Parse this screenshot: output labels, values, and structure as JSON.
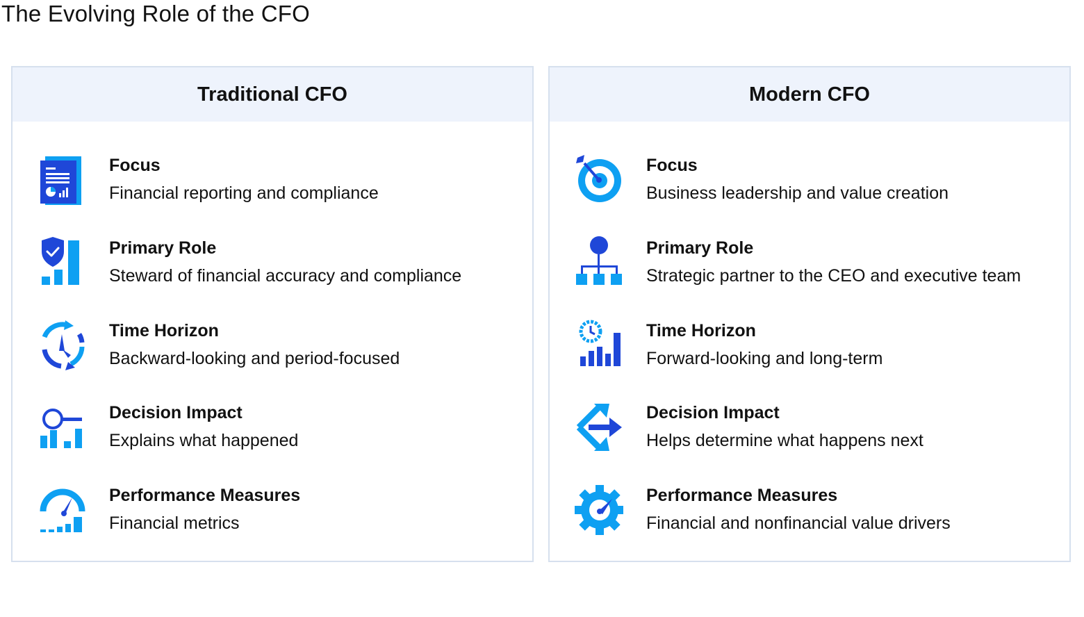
{
  "title": "The Evolving Role of the CFO",
  "colors": {
    "dark_blue": "#1f47d8",
    "light_blue": "#0ea0f2",
    "header_bg": "#eef3fc",
    "border": "#d6e0ee"
  },
  "panels": [
    {
      "heading": "Traditional CFO",
      "items": [
        {
          "label": "Focus",
          "value": "Financial reporting and compliance",
          "icon": "report-document-icon"
        },
        {
          "label": "Primary Role",
          "value": "Steward of financial accuracy and compliance",
          "icon": "shield-bars-icon"
        },
        {
          "label": "Time Horizon",
          "value": "Backward-looking and period-focused",
          "icon": "clock-cycle-icon"
        },
        {
          "label": "Decision Impact",
          "value": "Explains what happened",
          "icon": "magnifier-bars-icon"
        },
        {
          "label": "Performance Measures",
          "value": "Financial metrics",
          "icon": "gauge-bars-icon"
        }
      ]
    },
    {
      "heading": "Modern CFO",
      "items": [
        {
          "label": "Focus",
          "value": "Business leadership and value creation",
          "icon": "target-dart-icon"
        },
        {
          "label": "Primary Role",
          "value": "Strategic partner to the CEO and executive team",
          "icon": "org-chart-icon"
        },
        {
          "label": "Time Horizon",
          "value": "Forward-looking and long-term",
          "icon": "clock-growth-icon"
        },
        {
          "label": "Decision Impact",
          "value": "Helps determine what happens next",
          "icon": "decision-arrows-icon"
        },
        {
          "label": "Performance Measures",
          "value": "Financial and nonfinancial value drivers",
          "icon": "gear-gauge-icon"
        }
      ]
    }
  ]
}
